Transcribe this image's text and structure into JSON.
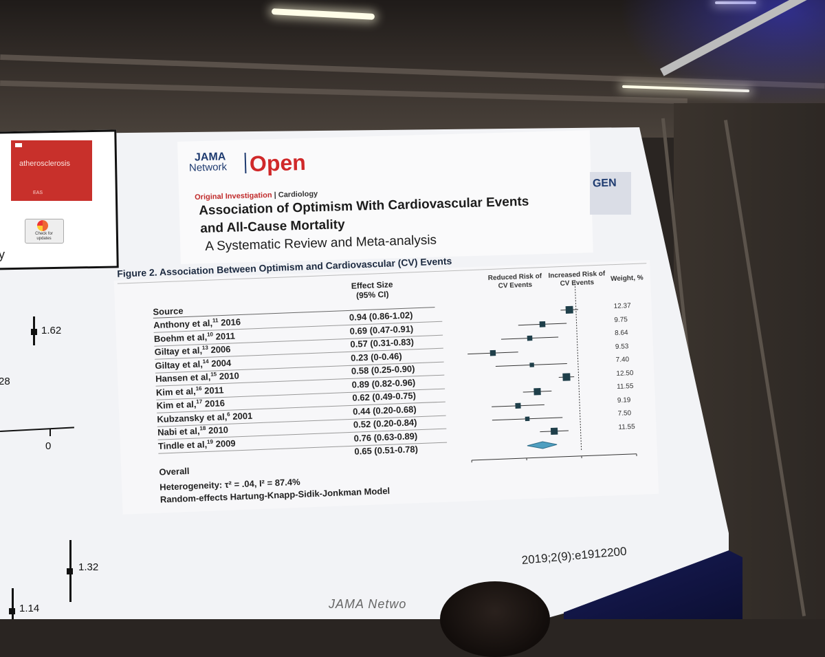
{
  "left_panel": {
    "cover_text": "atherosclerosis",
    "cover_footer": "EAS",
    "check_badge": "Check for updates",
    "cut_text": "y",
    "labels": [
      "1.62",
      "28",
      "0",
      "1.32",
      "1.14"
    ]
  },
  "header": {
    "logo_jama": "JAMA",
    "logo_network": "Network",
    "logo_open": "Open",
    "right_tag": "GEN"
  },
  "article": {
    "type_primary": "Original Investigation",
    "type_separator": " | ",
    "type_section": "Cardiology",
    "title_line1": "Association of Optimism With Cardiovascular Events",
    "title_line2": "and All-Cause Mortality",
    "subtitle": "A Systematic Review and Meta-analysis"
  },
  "figure": {
    "title": "Figure 2. Association Between Optimism and Cardiovascular (CV) Events",
    "col_source": "Source",
    "col_effect": "Effect Size (95% CI)",
    "col_reduced": "Reduced Risk of CV Events",
    "col_increased": "Increased Risk of CV Events",
    "col_weight": "Weight, %",
    "overall_label": "Overall",
    "heterogeneity": "Heterogeneity: τ² = .04, I² = 87.4%",
    "model": "Random-effects Hartung-Knapp-Sidik-Jonkman Model",
    "axis_label": "Effect Size (95% CI)",
    "box_color": "#1f3f4a",
    "diamond_color": "#4f9fc0",
    "rows": [
      {
        "author": "Anthony et al,",
        "ref": "11",
        "year": "2016",
        "ci_text": "0.94 (0.86-1.02)",
        "es": 0.94,
        "lo": 0.86,
        "hi": 1.02,
        "weight": "12.37"
      },
      {
        "author": "Boehm et al,",
        "ref": "10",
        "year": "2011",
        "ci_text": "0.69 (0.47-0.91)",
        "es": 0.69,
        "lo": 0.47,
        "hi": 0.91,
        "weight": "9.75"
      },
      {
        "author": "Giltay et al,",
        "ref": "13",
        "year": "2006",
        "ci_text": "0.57 (0.31-0.83)",
        "es": 0.57,
        "lo": 0.31,
        "hi": 0.83,
        "weight": "8.64"
      },
      {
        "author": "Giltay et al,",
        "ref": "14",
        "year": "2004",
        "ci_text": "0.23 (0-0.46)",
        "es": 0.23,
        "lo": 0.0,
        "hi": 0.46,
        "weight": "9.53"
      },
      {
        "author": "Hansen et al,",
        "ref": "15",
        "year": "2010",
        "ci_text": "0.58 (0.25-0.90)",
        "es": 0.58,
        "lo": 0.25,
        "hi": 0.9,
        "weight": "7.40"
      },
      {
        "author": "Kim et al,",
        "ref": "16",
        "year": "2011",
        "ci_text": "0.89 (0.82-0.96)",
        "es": 0.89,
        "lo": 0.82,
        "hi": 0.96,
        "weight": "12.50"
      },
      {
        "author": "Kim et al,",
        "ref": "17",
        "year": "2016",
        "ci_text": "0.62 (0.49-0.75)",
        "es": 0.62,
        "lo": 0.49,
        "hi": 0.75,
        "weight": "11.55"
      },
      {
        "author": "Kubzansky et al,",
        "ref": "6",
        "year": "2001",
        "ci_text": "0.44 (0.20-0.68)",
        "es": 0.44,
        "lo": 0.2,
        "hi": 0.68,
        "weight": "9.19"
      },
      {
        "author": "Nabi et al,",
        "ref": "18",
        "year": "2010",
        "ci_text": "0.52 (0.20-0.84)",
        "es": 0.52,
        "lo": 0.2,
        "hi": 0.84,
        "weight": "7.50"
      },
      {
        "author": "Tindle et al,",
        "ref": "19",
        "year": "2009",
        "ci_text": "0.76 (0.63-0.89)",
        "es": 0.76,
        "lo": 0.63,
        "hi": 0.89,
        "weight": "11.55"
      }
    ],
    "overall": {
      "ci_text": "0.65 (0.51-0.78)",
      "es": 0.65,
      "lo": 0.51,
      "hi": 0.78
    },
    "x_ticks": [
      "0",
      "0.5",
      "1.0",
      "1.5"
    ],
    "x_tick_values": [
      0,
      0.5,
      1.0,
      1.5
    ],
    "xlim": [
      0,
      1.5
    ],
    "ref_line": 1.0
  },
  "footer": {
    "citation": "2019;2(9):e1912200",
    "journal": "JAMA Netwo"
  }
}
